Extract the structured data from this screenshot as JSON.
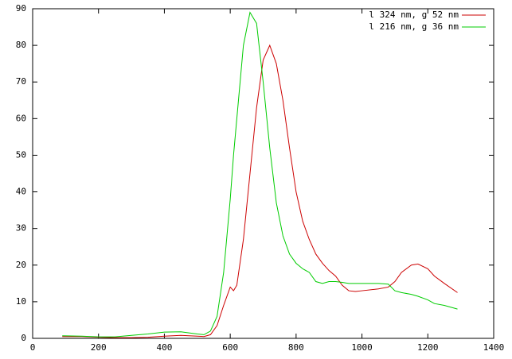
{
  "chart_data": {
    "type": "line",
    "x": [
      90,
      150,
      200,
      250,
      300,
      350,
      400,
      450,
      500,
      520,
      540,
      560,
      580,
      600,
      610,
      620,
      640,
      660,
      680,
      700,
      720,
      740,
      760,
      780,
      800,
      820,
      840,
      860,
      880,
      900,
      920,
      940,
      960,
      980,
      1000,
      1050,
      1080,
      1100,
      1120,
      1150,
      1170,
      1200,
      1220,
      1250,
      1290
    ],
    "series": [
      {
        "name": "l 324 nm, g 52 nm",
        "color": "#cc0000",
        "values": [
          0.5,
          0.5,
          0.3,
          0.2,
          0.2,
          0.3,
          0.6,
          0.8,
          0.6,
          0.5,
          1,
          3.5,
          9,
          14,
          13,
          14.5,
          27,
          45,
          63,
          76,
          80,
          75,
          65,
          52,
          40,
          32,
          27,
          23,
          20.5,
          18.5,
          17,
          14.5,
          13,
          12.8,
          13,
          13.5,
          14,
          15.5,
          18,
          20,
          20.3,
          19,
          17,
          15,
          12.5
        ]
      },
      {
        "name": "l 216 nm, g 36 nm",
        "color": "#00cc00",
        "values": [
          0.7,
          0.6,
          0.4,
          0.4,
          0.8,
          1.2,
          1.7,
          1.8,
          1.2,
          1,
          2,
          6,
          18,
          38,
          50,
          60,
          80,
          89,
          86,
          70,
          52,
          37,
          28,
          23,
          20.5,
          19,
          18,
          15.5,
          15,
          15.5,
          15.5,
          15.3,
          15,
          15,
          15,
          15,
          14.8,
          13,
          12.5,
          12,
          11.5,
          10.5,
          9.5,
          9,
          8
        ]
      }
    ],
    "xlim": [
      0,
      1400
    ],
    "xticks": [
      0,
      200,
      400,
      600,
      800,
      1000,
      1200,
      1400
    ],
    "ylim": [
      0,
      90
    ],
    "yticks": [
      0,
      10,
      20,
      30,
      40,
      50,
      60,
      70,
      80,
      90
    ],
    "legend": "top-right"
  }
}
